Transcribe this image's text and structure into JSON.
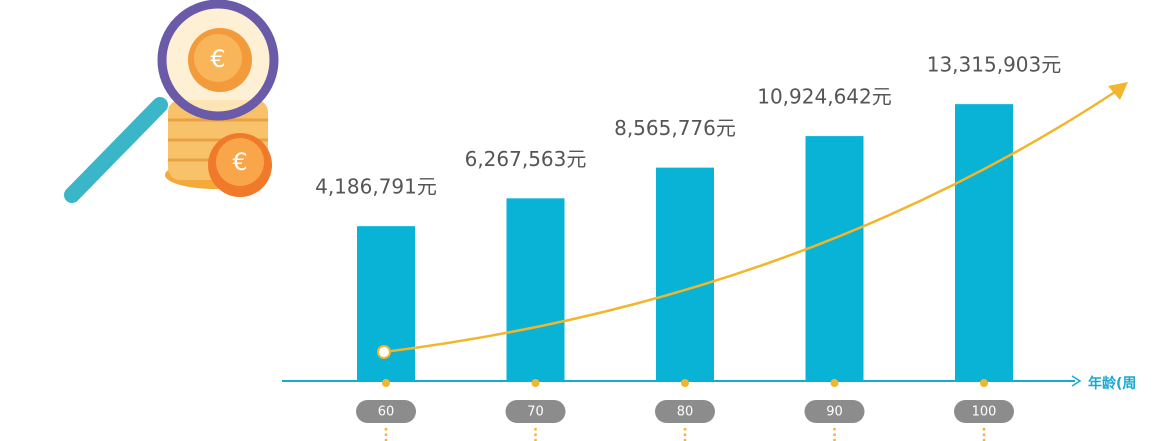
{
  "chart_data": {
    "type": "bar",
    "x_label": "年龄(周",
    "categories": [
      "60",
      "70",
      "80",
      "90",
      "100"
    ],
    "values": [
      4186791,
      6267563,
      8565776,
      10924642,
      13315903
    ],
    "value_labels": [
      "4,186,791元",
      "6,267,563元",
      "8,565,776元",
      "10,924,642元",
      "13,315,903元"
    ],
    "color": "#08b3d6",
    "ylim": [
      -7400000,
      14000000
    ]
  }
}
